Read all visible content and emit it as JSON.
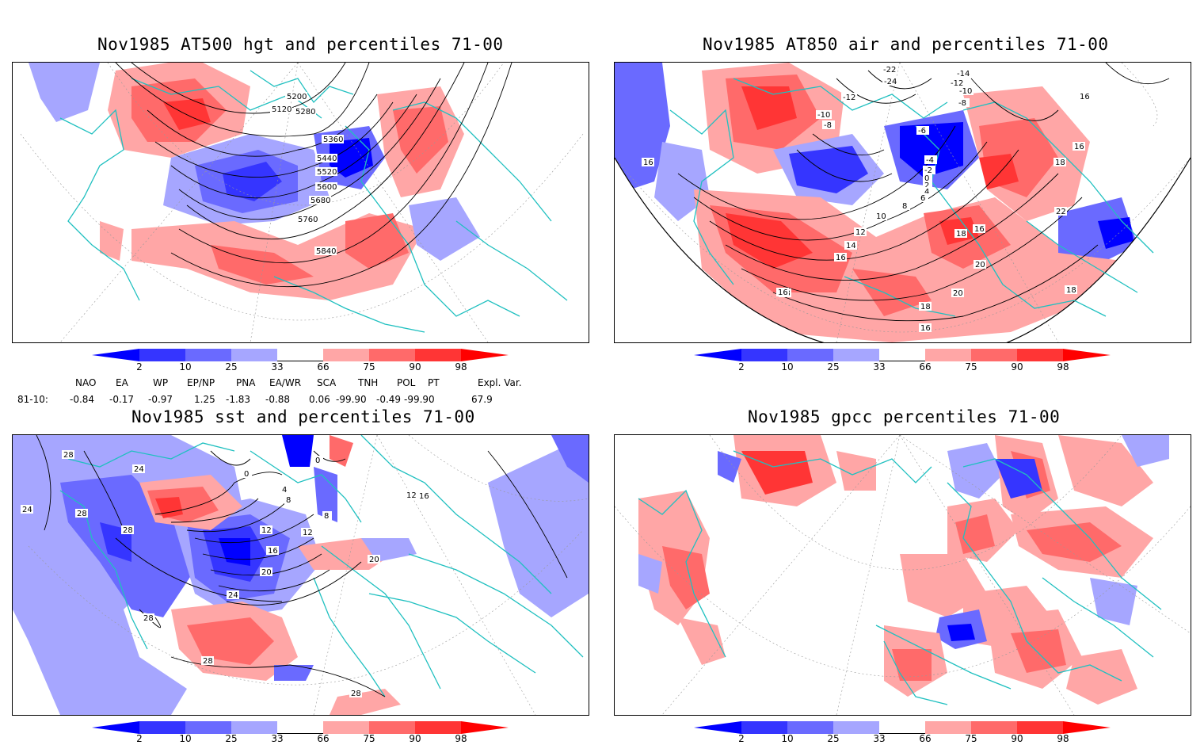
{
  "panels": [
    {
      "title": "Nov1985 AT500 hgt and percentiles 71-00",
      "contour_labels": [
        "5120",
        "5200",
        "5280",
        "5360",
        "5440",
        "5520",
        "5600",
        "5680",
        "5760",
        "5840"
      ]
    },
    {
      "title": "Nov1985 AT850 air and percentiles 71-00",
      "contour_labels": [
        "-22",
        "-14",
        "-12",
        "-10",
        "-12",
        "-24",
        "-10",
        "-8",
        "-6",
        "-8",
        "-4",
        "-2",
        "0",
        "2",
        "4",
        "6",
        "8",
        "10",
        "12",
        "14",
        "16",
        "18",
        "16",
        "16",
        "18",
        "20",
        "22",
        "18",
        "20",
        "16",
        "18",
        "16",
        "16",
        "16",
        "18"
      ]
    },
    {
      "title": "Nov1985 sst and percentiles 71-00",
      "contour_labels": [
        "28",
        "24",
        "24",
        "28",
        "28",
        "0",
        "0",
        "4",
        "8",
        "12",
        "16",
        "20",
        "24",
        "12",
        "20",
        "28",
        "28",
        "28",
        "8",
        "12",
        "16"
      ]
    },
    {
      "title": "Nov1985 gpcc percentiles 71-00",
      "contour_labels": []
    }
  ],
  "colorbar": {
    "ticks": [
      "2",
      "10",
      "25",
      "33",
      "66",
      "75",
      "90",
      "98"
    ],
    "colors": {
      "below2": "#0000ff",
      "c2_10": "#3535ff",
      "c10_25": "#6a6aff",
      "c25_33": "#a6a6ff",
      "c66_75": "#ffa6a6",
      "c75_90": "#ff6a6a",
      "c90_98": "#ff3535",
      "above98": "#ff0000"
    }
  },
  "indices": {
    "headers": [
      "NAO",
      "EA",
      "WP",
      "EP/NP",
      "PNA",
      "EA/WR",
      "SCA",
      "TNH",
      "POL",
      "PT",
      "Expl. Var."
    ],
    "row_label": "81-10:",
    "values": [
      "-0.84",
      "-0.17",
      "-0.97",
      "1.25",
      "-1.83",
      "-0.88",
      "0.06",
      "-99.90",
      "-0.49",
      "-99.90",
      "67.9"
    ]
  },
  "map_colors": {
    "coast": "#20c0c0",
    "contour": "#000000",
    "grid": "#999999"
  }
}
